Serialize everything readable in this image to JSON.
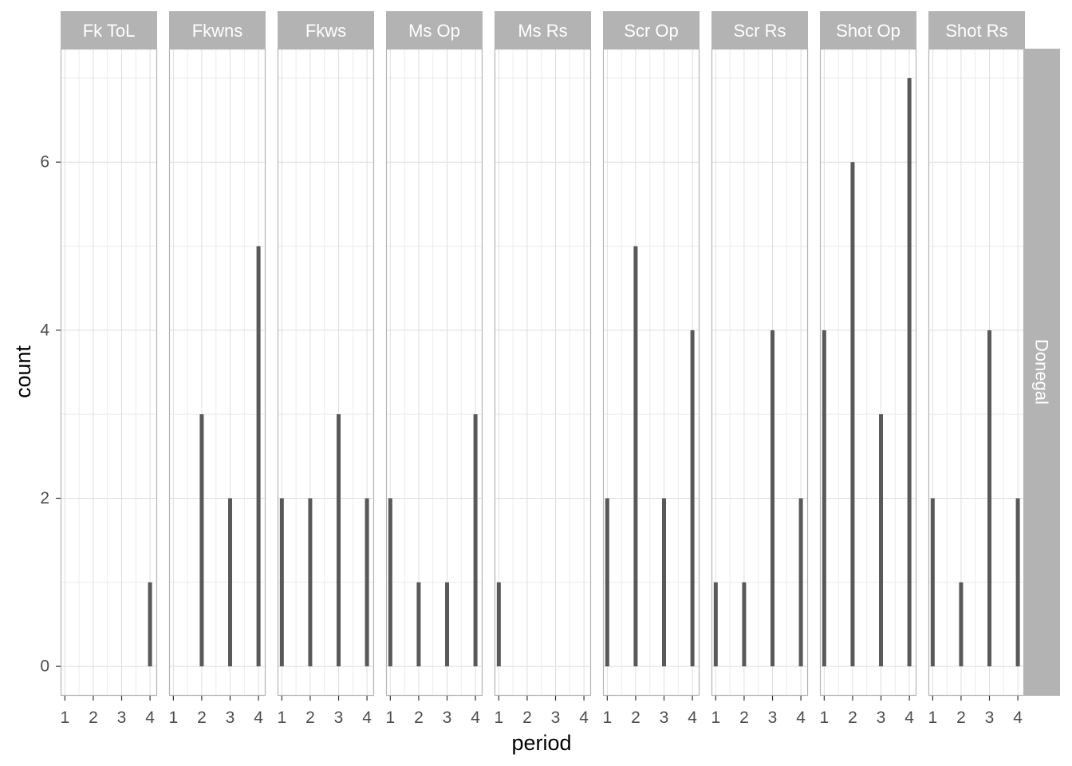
{
  "chart_data": {
    "type": "bar",
    "xlabel": "period",
    "ylabel": "count",
    "x_ticks": [
      "1",
      "2",
      "3",
      "4"
    ],
    "y_ticks": [
      0,
      2,
      4,
      6
    ],
    "ylim": [
      -0.35,
      7.35
    ],
    "xlim": [
      0.85,
      4.25
    ],
    "grid": true,
    "bar_color": "#595959",
    "strip_color": "#b3b3b3",
    "row_facet": "Donegal",
    "panels": [
      {
        "name": "Fk ToL",
        "x": [
          4
        ],
        "values": [
          1
        ]
      },
      {
        "name": "Fkwns",
        "x": [
          2,
          3,
          4
        ],
        "values": [
          3,
          2,
          5
        ]
      },
      {
        "name": "Fkws",
        "x": [
          1,
          2,
          3,
          4
        ],
        "values": [
          2,
          2,
          3,
          2
        ]
      },
      {
        "name": "Ms Op",
        "x": [
          1,
          2,
          3,
          4
        ],
        "values": [
          2,
          1,
          1,
          3
        ]
      },
      {
        "name": "Ms Rs",
        "x": [
          1
        ],
        "values": [
          1
        ]
      },
      {
        "name": "Scr Op",
        "x": [
          1,
          2,
          3,
          4
        ],
        "values": [
          2,
          5,
          2,
          4
        ]
      },
      {
        "name": "Scr Rs",
        "x": [
          1,
          2,
          3,
          4
        ],
        "values": [
          1,
          1,
          4,
          2
        ]
      },
      {
        "name": "Shot Op",
        "x": [
          1,
          2,
          3,
          4
        ],
        "values": [
          4,
          6,
          3,
          7
        ]
      },
      {
        "name": "Shot Rs",
        "x": [
          1,
          2,
          3,
          4
        ],
        "values": [
          2,
          1,
          4,
          2
        ]
      }
    ]
  }
}
